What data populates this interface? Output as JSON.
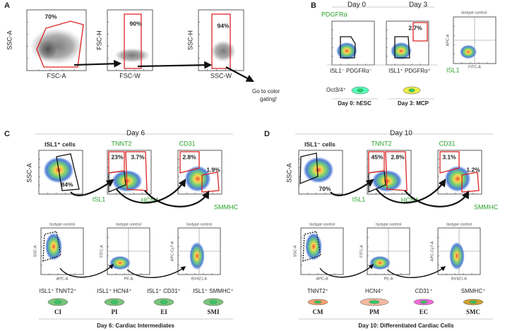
{
  "panel_a": {
    "label": "A",
    "plots": [
      {
        "y_axis": "SSC-A",
        "x_axis": "FSC-A",
        "gate": "70%"
      },
      {
        "y_axis": "FSC-H",
        "x_axis": "FSC-W",
        "gate": "90%"
      },
      {
        "y_axis": "SSC-H",
        "x_axis": "SSC-W",
        "gate": "94%"
      }
    ],
    "note": [
      "Go to color",
      "gating!"
    ]
  },
  "panel_b": {
    "label": "B",
    "days": [
      "Day 0",
      "Day 3"
    ],
    "y_axis": "PDGFRα",
    "x_axis": "ISL1",
    "gate": "2.7%",
    "populations": [
      "ISL1⁻ PDGFRα⁻",
      "ISL1⁺ PDGFRα⁺"
    ],
    "isotype": {
      "title": "Isotype control",
      "y_axis": "APC-A",
      "x_axis": "FITC-A"
    },
    "marker": "Oct3/4⁺",
    "stages": [
      "Day 0: hESC",
      "Day 3: MCP"
    ]
  },
  "panel_c": {
    "label": "C",
    "day": "Day 6",
    "gate_title": "ISL1⁺ cells",
    "y_axis": "SSC-A",
    "x_axis": "ISL1",
    "gates": [
      "84%",
      "23%",
      "3.7%",
      "2.8%",
      "1.9%"
    ],
    "markers": [
      "TNNT2",
      "CD31",
      "HCN4",
      "SMMHC"
    ],
    "isotype": {
      "title": "Isotype control",
      "axes": [
        [
          "SSC-A",
          "APC-A"
        ],
        [
          "FITC-A",
          "PE-A"
        ],
        [
          "APC-Cy7-A",
          "BV421-A"
        ]
      ]
    },
    "cell_types": [
      {
        "marker": "ISL1⁺ TNNT2⁺",
        "abbr": "CI"
      },
      {
        "marker": "ISL1⁺ HCN4⁺",
        "abbr": "PI"
      },
      {
        "marker": "ISL1⁺ CD31⁺",
        "abbr": "EI"
      },
      {
        "marker": "ISL1⁺ SMMHC⁺",
        "abbr": "SMI"
      }
    ],
    "caption": "Day 6: Cardiac Intermediates"
  },
  "panel_d": {
    "label": "D",
    "day": "Day 10",
    "gate_title": "ISL1⁻ cells",
    "y_axis": "SSC-A",
    "x_axis": "ISL1",
    "gates": [
      "70%",
      "45%",
      "2.8%",
      "3.1%",
      "1.2%"
    ],
    "markers": [
      "TNNT2",
      "CD31",
      "HCN4",
      "SMMHC"
    ],
    "isotype": {
      "title": "Isotype control",
      "axes": [
        [
          "SSC-A",
          "APC-A"
        ],
        [
          "FITC-A",
          "PE-A"
        ],
        [
          "APC-Cy7-A",
          "BV421-A"
        ]
      ]
    },
    "cell_types": [
      {
        "marker": "TNNT2⁺",
        "abbr": "CM"
      },
      {
        "marker": "HCN4⁺",
        "abbr": "PM"
      },
      {
        "marker": "CD31⁺",
        "abbr": "EC"
      },
      {
        "marker": "SMMHC⁺",
        "abbr": "SMC"
      }
    ],
    "caption": "Day 10: Differentiated Cardiac Cells"
  }
}
